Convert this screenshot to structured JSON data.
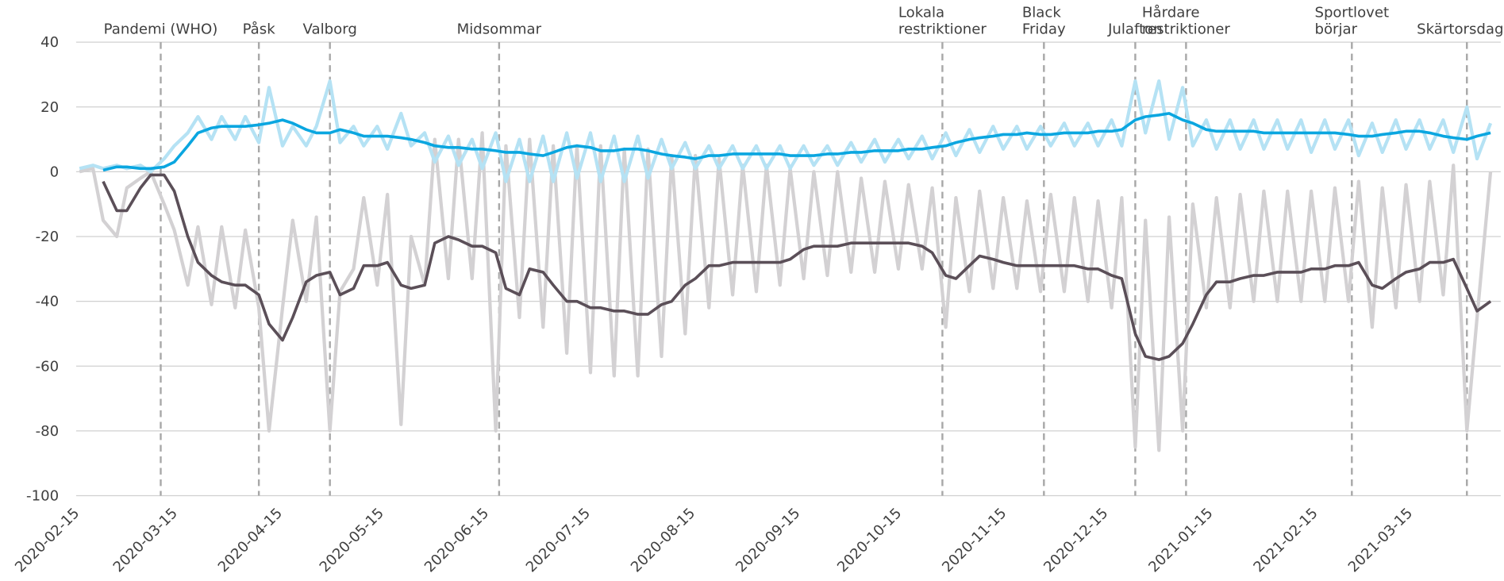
{
  "chart_data": {
    "type": "line",
    "x": [
      "2020-02-16",
      "2020-02-20",
      "2020-02-23",
      "2020-02-27",
      "2020-03-01",
      "2020-03-05",
      "2020-03-08",
      "2020-03-12",
      "2020-03-15",
      "2020-03-19",
      "2020-03-22",
      "2020-03-26",
      "2020-03-29",
      "2020-04-02",
      "2020-04-05",
      "2020-04-09",
      "2020-04-12",
      "2020-04-16",
      "2020-04-19",
      "2020-04-23",
      "2020-04-26",
      "2020-04-30",
      "2020-05-03",
      "2020-05-07",
      "2020-05-10",
      "2020-05-14",
      "2020-05-17",
      "2020-05-21",
      "2020-05-24",
      "2020-05-28",
      "2020-05-31",
      "2020-06-04",
      "2020-06-07",
      "2020-06-11",
      "2020-06-14",
      "2020-06-18",
      "2020-06-21",
      "2020-06-25",
      "2020-06-28",
      "2020-07-02",
      "2020-07-05",
      "2020-07-09",
      "2020-07-12",
      "2020-07-16",
      "2020-07-19",
      "2020-07-23",
      "2020-07-26",
      "2020-07-30",
      "2020-08-02",
      "2020-08-06",
      "2020-08-09",
      "2020-08-13",
      "2020-08-16",
      "2020-08-20",
      "2020-08-23",
      "2020-08-27",
      "2020-08-30",
      "2020-09-03",
      "2020-09-06",
      "2020-09-10",
      "2020-09-13",
      "2020-09-17",
      "2020-09-20",
      "2020-09-24",
      "2020-09-27",
      "2020-10-01",
      "2020-10-04",
      "2020-10-08",
      "2020-10-11",
      "2020-10-15",
      "2020-10-18",
      "2020-10-22",
      "2020-10-25",
      "2020-10-29",
      "2020-11-01",
      "2020-11-05",
      "2020-11-08",
      "2020-11-12",
      "2020-11-15",
      "2020-11-19",
      "2020-11-22",
      "2020-11-26",
      "2020-11-29",
      "2020-12-03",
      "2020-12-06",
      "2020-12-10",
      "2020-12-13",
      "2020-12-17",
      "2020-12-20",
      "2020-12-24",
      "2020-12-27",
      "2020-12-31",
      "2021-01-03",
      "2021-01-07",
      "2021-01-10",
      "2021-01-14",
      "2021-01-17",
      "2021-01-21",
      "2021-01-24",
      "2021-01-28",
      "2021-01-31",
      "2021-02-04",
      "2021-02-07",
      "2021-02-11",
      "2021-02-14",
      "2021-02-18",
      "2021-02-21",
      "2021-02-25",
      "2021-02-28",
      "2021-03-04",
      "2021-03-07",
      "2021-03-11",
      "2021-03-14",
      "2021-03-18",
      "2021-03-21",
      "2021-03-25",
      "2021-03-28",
      "2021-04-01",
      "2021-04-04",
      "2021-04-08"
    ],
    "series": [
      {
        "color": "#d3d1d3",
        "width": 3.5,
        "values": [
          0,
          1,
          -15,
          -20,
          -5,
          -2,
          0,
          -10,
          -18,
          -35,
          -17,
          -41,
          -17,
          -42,
          -18,
          -42,
          -80,
          -42,
          -15,
          -40,
          -14,
          -80,
          -37,
          -30,
          -8,
          -35,
          -7,
          -78,
          -20,
          -35,
          10,
          -33,
          10,
          -33,
          12,
          -80,
          8,
          -45,
          10,
          -48,
          8,
          -56,
          8,
          -62,
          8,
          -63,
          7,
          -63,
          7,
          -57,
          5,
          -50,
          5,
          -42,
          4,
          -38,
          2,
          -37,
          2,
          -35,
          1,
          -33,
          0,
          -32,
          0,
          -31,
          -2,
          -31,
          -3,
          -30,
          -4,
          -30,
          -5,
          -48,
          -8,
          -37,
          -6,
          -36,
          -8,
          -36,
          -9,
          -37,
          -7,
          -37,
          -8,
          -40,
          -9,
          -42,
          -8,
          -85,
          -15,
          -86,
          -14,
          -80,
          -10,
          -42,
          -8,
          -42,
          -7,
          -40,
          -6,
          -40,
          -6,
          -40,
          -6,
          -40,
          -5,
          -40,
          -3,
          -48,
          -5,
          -42,
          -4,
          -40,
          -3,
          -38,
          2,
          -80,
          -45,
          0
        ]
      },
      {
        "color": "#b5e2f4",
        "width": 3.5,
        "values": [
          1,
          2,
          1,
          2,
          1,
          2,
          0,
          4,
          8,
          12,
          17,
          10,
          17,
          10,
          17,
          9,
          26,
          8,
          14,
          8,
          14,
          28,
          9,
          14,
          8,
          14,
          7,
          18,
          8,
          12,
          3,
          11,
          2,
          10,
          1,
          12,
          -3,
          10,
          -3,
          11,
          -3,
          12,
          -2,
          12,
          -3,
          11,
          -3,
          11,
          -2,
          10,
          1,
          9,
          1,
          8,
          1,
          8,
          1,
          8,
          1,
          8,
          1,
          8,
          2,
          8,
          2,
          9,
          3,
          10,
          3,
          10,
          4,
          11,
          4,
          12,
          5,
          13,
          6,
          14,
          7,
          14,
          7,
          14,
          8,
          15,
          8,
          15,
          8,
          16,
          8,
          28,
          12,
          28,
          10,
          26,
          8,
          16,
          7,
          16,
          7,
          16,
          7,
          16,
          7,
          16,
          6,
          16,
          7,
          16,
          5,
          15,
          6,
          16,
          7,
          16,
          7,
          16,
          6,
          20,
          4,
          15
        ]
      },
      {
        "color": "#5b4f58",
        "width": 3,
        "values": [
          null,
          null,
          -3,
          -12,
          -12,
          -5,
          -1,
          -1,
          -6,
          -20,
          -28,
          -32,
          -34,
          -35,
          -35,
          -38,
          -47,
          -52,
          -45,
          -34,
          -32,
          -31,
          -38,
          -36,
          -29,
          -29,
          -28,
          -35,
          -36,
          -35,
          -22,
          -20,
          -21,
          -23,
          -23,
          -25,
          -36,
          -38,
          -30,
          -31,
          -35,
          -40,
          -40,
          -42,
          -42,
          -43,
          -43,
          -44,
          -44,
          -41,
          -40,
          -35,
          -33,
          -29,
          -29,
          -28,
          -28,
          -28,
          -28,
          -28,
          -27,
          -24,
          -23,
          -23,
          -23,
          -22,
          -22,
          -22,
          -22,
          -22,
          -22,
          -23,
          -25,
          -32,
          -33,
          -29,
          -26,
          -27,
          -28,
          -29,
          -29,
          -29,
          -29,
          -29,
          -29,
          -30,
          -30,
          -32,
          -33,
          -50,
          -57,
          -58,
          -57,
          -53,
          -47,
          -38,
          -34,
          -34,
          -33,
          -32,
          -32,
          -31,
          -31,
          -31,
          -30,
          -30,
          -29,
          -29,
          -28,
          -35,
          -36,
          -33,
          -31,
          -30,
          -28,
          -28,
          -27,
          -36,
          -43,
          -40
        ]
      },
      {
        "color": "#0aa6e0",
        "width": 3,
        "values": [
          null,
          null,
          0.5,
          1.5,
          1.5,
          1,
          1,
          1.5,
          3,
          8,
          12,
          13.5,
          14,
          14,
          14,
          14.5,
          15,
          16,
          15,
          13,
          12,
          12,
          13,
          12,
          11,
          11,
          11,
          10.5,
          10,
          9,
          8,
          7.5,
          7.5,
          7,
          7,
          6.5,
          6,
          6,
          5.5,
          5,
          6,
          7.5,
          8,
          7.5,
          6.5,
          6.5,
          7,
          7,
          6.5,
          5.5,
          5,
          4.5,
          4,
          5,
          5,
          5.5,
          5.5,
          5.5,
          5.5,
          5.5,
          5,
          5,
          5,
          5.5,
          5.5,
          6,
          6,
          6.5,
          6.5,
          6.5,
          7,
          7,
          7.5,
          8,
          9,
          10,
          10.5,
          11,
          11.5,
          11.5,
          12,
          11.5,
          11.5,
          12,
          12,
          12,
          12.5,
          12.5,
          13,
          16,
          17,
          17.5,
          18,
          16,
          15,
          13,
          12.5,
          12.5,
          12.5,
          12.5,
          12,
          12,
          12,
          12,
          12,
          12,
          12,
          11.5,
          11,
          11,
          11.5,
          12,
          12.5,
          12.5,
          12,
          11,
          10.5,
          10,
          11,
          12
        ]
      }
    ],
    "xlim": [
      "2020-02-15",
      "2021-04-11"
    ],
    "xticks": [
      "2020-02-15",
      "2020-03-15",
      "2020-04-15",
      "2020-05-15",
      "2020-06-15",
      "2020-07-15",
      "2020-08-15",
      "2020-09-15",
      "2020-10-15",
      "2020-11-15",
      "2020-12-15",
      "2021-01-15",
      "2021-02-15",
      "2021-03-15"
    ],
    "ylim": [
      -100,
      40
    ],
    "yticks": [
      -100,
      -80,
      -60,
      -40,
      -20,
      0,
      20,
      40
    ],
    "grid": true,
    "annotations": [
      {
        "x": "2020-03-11",
        "label": [
          "Pandemi (WHO)"
        ]
      },
      {
        "x": "2020-04-09",
        "label": [
          "Påsk"
        ]
      },
      {
        "x": "2020-04-30",
        "label": [
          "Valborg"
        ]
      },
      {
        "x": "2020-06-19",
        "label": [
          "Midsommar"
        ]
      },
      {
        "x": "2020-10-28",
        "label": [
          "Lokala",
          "restriktioner"
        ]
      },
      {
        "x": "2020-11-27",
        "label": [
          "Black",
          "Friday"
        ]
      },
      {
        "x": "2020-12-24",
        "label": [
          "Julafton"
        ]
      },
      {
        "x": "2021-01-08",
        "label": [
          "Hårdare",
          "restriktioner"
        ]
      },
      {
        "x": "2021-02-26",
        "label": [
          "Sportlovet",
          "börjar"
        ]
      },
      {
        "x": "2021-04-01",
        "label": [
          "Skärtorsdag"
        ]
      }
    ]
  }
}
